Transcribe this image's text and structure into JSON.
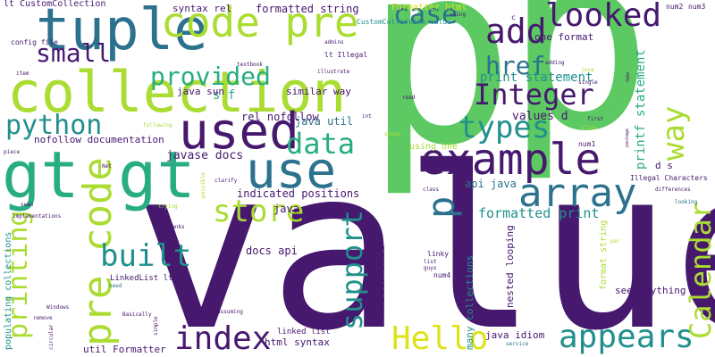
{
  "palette": {
    "dark_purple": "#46186e",
    "purple": "#472c7a",
    "blue": "#3b528b",
    "teal_blue": "#2c728e",
    "teal": "#21908d",
    "green_teal": "#27ad81",
    "green": "#5dc963",
    "lime": "#aadc32",
    "yellow": "#dde318"
  },
  "words": [
    {
      "id": "w001",
      "text": "value"
    },
    {
      "id": "w002",
      "text": "p"
    },
    {
      "id": "w003",
      "text": "p"
    },
    {
      "id": "w004",
      "text": "collection"
    },
    {
      "id": "w005",
      "text": "gt gt"
    },
    {
      "id": "w006",
      "text": "tuple"
    },
    {
      "id": "w007",
      "text": "code pre"
    },
    {
      "id": "w008",
      "text": "used"
    },
    {
      "id": "w009",
      "text": "use"
    },
    {
      "id": "w010",
      "text": "example"
    },
    {
      "id": "w011",
      "text": "pre code"
    },
    {
      "id": "w012",
      "text": "array"
    },
    {
      "id": "w013",
      "text": "add"
    },
    {
      "id": "w014",
      "text": "looked"
    },
    {
      "id": "w015",
      "text": "Integer"
    },
    {
      "id": "w016",
      "text": "appears"
    },
    {
      "id": "w017",
      "text": "index"
    },
    {
      "id": "w018",
      "text": "Hello"
    },
    {
      "id": "w019",
      "text": "types"
    },
    {
      "id": "w020",
      "text": "store"
    },
    {
      "id": "w021",
      "text": "data"
    },
    {
      "id": "w022",
      "text": "built"
    },
    {
      "id": "w023",
      "text": "python"
    },
    {
      "id": "w024",
      "text": "provided"
    },
    {
      "id": "w025",
      "text": "small"
    },
    {
      "id": "w026",
      "text": "case"
    },
    {
      "id": "w027",
      "text": "way"
    },
    {
      "id": "w028",
      "text": "href"
    },
    {
      "id": "w029",
      "text": "support"
    },
    {
      "id": "w030",
      "text": "Calendar"
    },
    {
      "id": "w031",
      "text": "printing"
    },
    {
      "id": "w032",
      "text": "p"
    },
    {
      "id": "w033",
      "text": "formatted print"
    },
    {
      "id": "w034",
      "text": "print statement"
    },
    {
      "id": "w035",
      "text": "printf statement"
    },
    {
      "id": "w036",
      "text": "values d"
    },
    {
      "id": "w037",
      "text": "formatted string"
    },
    {
      "id": "w038",
      "text": "one format"
    },
    {
      "id": "w039",
      "text": "s f"
    },
    {
      "id": "w040",
      "text": "rel nofollow"
    },
    {
      "id": "w041",
      "text": "java util"
    },
    {
      "id": "w042",
      "text": "javase docs"
    },
    {
      "id": "w043",
      "text": "indicated positions"
    },
    {
      "id": "w044",
      "text": "java printf"
    },
    {
      "id": "w045",
      "text": "api java"
    },
    {
      "id": "w046",
      "text": "docs api"
    },
    {
      "id": "w047",
      "text": "Hello code"
    },
    {
      "id": "w048",
      "text": "nested looping"
    },
    {
      "id": "w049",
      "text": "many collections"
    },
    {
      "id": "w050",
      "text": "java idiom"
    },
    {
      "id": "w051",
      "text": "see anything"
    },
    {
      "id": "w052",
      "text": "format string"
    },
    {
      "id": "w053",
      "text": "html syntax"
    },
    {
      "id": "w054",
      "text": "util Formatter"
    },
    {
      "id": "w055",
      "text": "populating collections"
    },
    {
      "id": "w056",
      "text": "nofollow documentation"
    },
    {
      "id": "w057",
      "text": "similar way"
    },
    {
      "id": "w058",
      "text": "java sun"
    },
    {
      "id": "w059",
      "text": "syntax rel"
    },
    {
      "id": "w060",
      "text": "lt CustomCollection"
    },
    {
      "id": "w061",
      "text": "Formatter html"
    },
    {
      "id": "w062",
      "text": "CustomCollection value"
    },
    {
      "id": "w063",
      "text": "lt Illegal"
    },
    {
      "id": "w064",
      "text": "Illegal Characters"
    },
    {
      "id": "w065",
      "text": "d s"
    },
    {
      "id": "w066",
      "text": "using one"
    },
    {
      "id": "w067",
      "text": "linked list"
    },
    {
      "id": "w068",
      "text": "LinkedList lt"
    },
    {
      "id": "w069",
      "text": "config file"
    },
    {
      "id": "w070",
      "text": "textbook"
    },
    {
      "id": "w071",
      "text": "illustrate"
    },
    {
      "id": "w072",
      "text": "admins"
    },
    {
      "id": "w073",
      "text": "item"
    },
    {
      "id": "w074",
      "text": "num1"
    },
    {
      "id": "w075",
      "text": "num2"
    },
    {
      "id": "w076",
      "text": "num3"
    },
    {
      "id": "w077",
      "text": "num4"
    },
    {
      "id": "w078",
      "text": "linky"
    },
    {
      "id": "w079",
      "text": "adding"
    },
    {
      "id": "w080",
      "text": "read"
    },
    {
      "id": "w081",
      "text": "single"
    },
    {
      "id": "w082",
      "text": "first"
    },
    {
      "id": "w083",
      "text": "allow"
    },
    {
      "id": "w084",
      "text": "differences"
    },
    {
      "id": "w085",
      "text": "looking"
    },
    {
      "id": "w086",
      "text": "Thanks"
    },
    {
      "id": "w087",
      "text": "seen"
    },
    {
      "id": "w088",
      "text": "implementations"
    },
    {
      "id": "w089",
      "text": "piece"
    },
    {
      "id": "w090",
      "text": "need"
    },
    {
      "id": "w091",
      "text": "remove"
    },
    {
      "id": "w092",
      "text": "Basically"
    },
    {
      "id": "w093",
      "text": "Windows"
    },
    {
      "id": "w094",
      "text": "following"
    },
    {
      "id": "w095",
      "text": "clarify"
    },
    {
      "id": "w096",
      "text": "trying"
    },
    {
      "id": "w097",
      "text": "queue"
    },
    {
      "id": "w098",
      "text": "assuming"
    },
    {
      "id": "w099",
      "text": "service"
    },
    {
      "id": "w100",
      "text": "list"
    },
    {
      "id": "w101",
      "text": "guys"
    },
    {
      "id": "w102",
      "text": "using"
    },
    {
      "id": "w103",
      "text": "java"
    },
    {
      "id": "w104",
      "text": "new"
    },
    {
      "id": "w105",
      "text": "int"
    },
    {
      "id": "w106",
      "text": "Net"
    },
    {
      "id": "w107",
      "text": "possible"
    },
    {
      "id": "w108",
      "text": "circular"
    },
    {
      "id": "w109",
      "text": "simple"
    },
    {
      "id": "w110",
      "text": "per"
    },
    {
      "id": "w111",
      "text": "class"
    },
    {
      "id": "w112",
      "text": "package"
    },
    {
      "id": "w113",
      "text": "gt"
    },
    {
      "id": "w114",
      "text": "c"
    }
  ]
}
